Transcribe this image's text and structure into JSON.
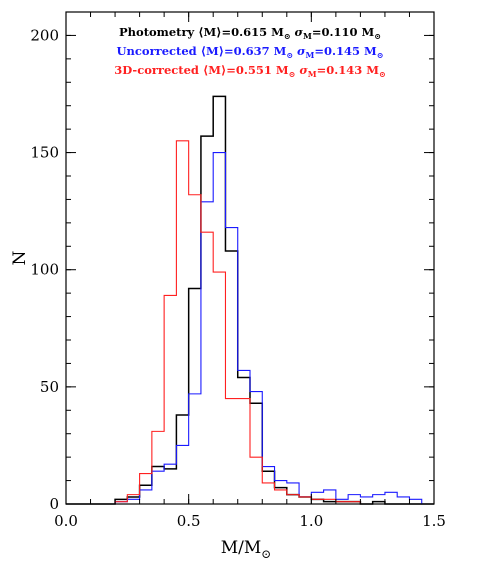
{
  "chart_data": {
    "type": "histogram-step",
    "xlabel": "M/M",
    "xlabel_symbol": "⊙",
    "ylabel": "N",
    "xlim": [
      0.0,
      1.5
    ],
    "ylim": [
      0,
      210
    ],
    "x_ticks": [
      {
        "value": 0.0,
        "label": "0.0"
      },
      {
        "value": 0.5,
        "label": "0.5"
      },
      {
        "value": 1.0,
        "label": "1.0"
      },
      {
        "value": 1.5,
        "label": "1.5"
      }
    ],
    "y_ticks": [
      {
        "value": 0,
        "label": "0"
      },
      {
        "value": 50,
        "label": "50"
      },
      {
        "value": 100,
        "label": "100"
      },
      {
        "value": 150,
        "label": "150"
      },
      {
        "value": 200,
        "label": "200"
      }
    ],
    "x_minor_step": 0.1,
    "y_minor_step": 10,
    "bin_width": 0.05,
    "bin_edges": [
      0.0,
      0.05,
      0.1,
      0.15,
      0.2,
      0.25,
      0.3,
      0.35,
      0.4,
      0.45,
      0.5,
      0.55,
      0.6,
      0.65,
      0.7,
      0.75,
      0.8,
      0.85,
      0.9,
      0.95,
      1.0,
      1.05,
      1.1,
      1.15,
      1.2,
      1.25,
      1.3,
      1.35,
      1.4,
      1.45,
      1.5
    ],
    "series": [
      {
        "name": "Photometry",
        "color": "#000000",
        "legend_text": "Photometry  ⟨M⟩=0.615 M",
        "legend_sigma": "σ",
        "legend_sigma_sub": "M",
        "legend_sigma_value": "=0.110 M",
        "legend_sun": "⊙",
        "values": [
          0,
          0,
          0,
          0,
          2,
          3,
          8,
          16,
          15,
          38,
          92,
          157,
          174,
          108,
          54,
          43,
          14,
          7,
          4,
          3,
          2,
          1,
          1,
          1,
          0,
          1,
          0,
          0,
          0,
          0
        ]
      },
      {
        "name": "Uncorrected",
        "color": "#1a1aff",
        "legend_text": "Uncorrected  ⟨M⟩=0.637 M",
        "legend_sigma": "σ",
        "legend_sigma_sub": "M",
        "legend_sigma_value": "=0.145 M",
        "legend_sun": "⊙",
        "values": [
          0,
          0,
          0,
          0,
          1,
          2,
          6,
          14,
          17,
          25,
          47,
          129,
          150,
          118,
          57,
          48,
          16,
          10,
          9,
          3,
          5,
          6,
          2,
          4,
          3,
          4,
          5,
          3,
          2,
          0
        ]
      },
      {
        "name": "3D-corrected",
        "color": "#ff2020",
        "legend_text": "3D-corrected  ⟨M⟩=0.551 M",
        "legend_sigma": "σ",
        "legend_sigma_sub": "M",
        "legend_sigma_value": "=0.143 M",
        "legend_sun": "⊙",
        "values": [
          0,
          0,
          0,
          0,
          1,
          4,
          13,
          31,
          89,
          155,
          132,
          116,
          99,
          45,
          45,
          20,
          9,
          6,
          4,
          3,
          2,
          2,
          1,
          1,
          0,
          0,
          0,
          0,
          0,
          0
        ]
      }
    ]
  }
}
